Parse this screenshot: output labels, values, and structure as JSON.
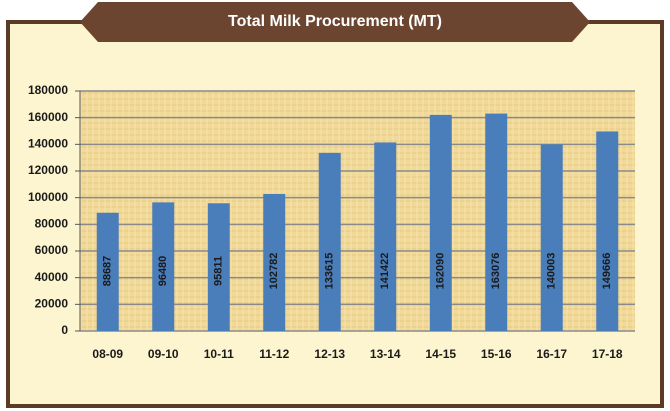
{
  "chart_data": {
    "type": "bar",
    "title": "Total Milk Procurement (MT)",
    "categories": [
      "08-09",
      "09-10",
      "10-11",
      "11-12",
      "12-13",
      "13-14",
      "14-15",
      "15-16",
      "16-17",
      "17-18"
    ],
    "values": [
      88687,
      96480,
      95811,
      102782,
      133615,
      141422,
      162090,
      163076,
      140003,
      149666
    ],
    "color": "#4a7ebb",
    "ylim": [
      0,
      180000
    ],
    "yticks": [
      0,
      20000,
      40000,
      60000,
      80000,
      100000,
      120000,
      140000,
      160000,
      180000
    ],
    "grid": true
  }
}
